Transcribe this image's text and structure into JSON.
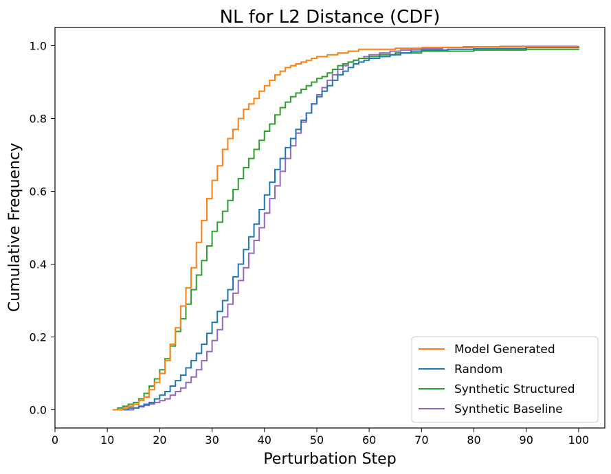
{
  "chart_data": {
    "type": "line",
    "step": true,
    "title": "NL for L2 Distance (CDF)",
    "xlabel": "Perturbation Step",
    "ylabel": "Cumulative Frequency",
    "xlim": [
      0,
      105
    ],
    "ylim": [
      -0.05,
      1.05
    ],
    "xticks": [
      0,
      10,
      20,
      30,
      40,
      50,
      60,
      70,
      80,
      90,
      100
    ],
    "yticks": [
      0.0,
      0.2,
      0.4,
      0.6,
      0.8,
      1.0
    ],
    "xtick_labels": [
      "0",
      "10",
      "20",
      "30",
      "40",
      "50",
      "60",
      "70",
      "80",
      "90",
      "100"
    ],
    "ytick_labels": [
      "0.0",
      "0.2",
      "0.4",
      "0.6",
      "0.8",
      "1.0"
    ],
    "legend_position": "bottom-right",
    "series": [
      {
        "name": "Model Generated",
        "color": "#ff7f0e",
        "x": [
          11,
          13,
          14,
          15,
          16,
          17,
          18,
          19,
          20,
          21,
          22,
          23,
          24,
          25,
          26,
          27,
          28,
          29,
          30,
          31,
          32,
          33,
          34,
          35,
          36,
          37,
          38,
          39,
          40,
          41,
          42,
          43,
          44,
          45,
          46,
          47,
          48,
          49,
          50,
          52,
          54,
          56,
          58,
          60,
          65,
          70,
          80,
          100
        ],
        "y": [
          0.0,
          0.005,
          0.01,
          0.015,
          0.025,
          0.035,
          0.055,
          0.075,
          0.1,
          0.135,
          0.18,
          0.225,
          0.285,
          0.335,
          0.39,
          0.46,
          0.52,
          0.58,
          0.63,
          0.67,
          0.715,
          0.745,
          0.77,
          0.8,
          0.825,
          0.84,
          0.855,
          0.875,
          0.89,
          0.905,
          0.92,
          0.93,
          0.94,
          0.945,
          0.95,
          0.955,
          0.96,
          0.965,
          0.97,
          0.975,
          0.98,
          0.985,
          0.99,
          0.99,
          0.993,
          0.995,
          0.997,
          0.998
        ]
      },
      {
        "name": "Random",
        "color": "#1f77b4",
        "x": [
          12,
          14,
          16,
          17,
          18,
          19,
          20,
          21,
          22,
          23,
          24,
          25,
          26,
          27,
          28,
          29,
          30,
          31,
          32,
          33,
          34,
          35,
          36,
          37,
          38,
          39,
          40,
          41,
          42,
          43,
          44,
          45,
          46,
          47,
          48,
          49,
          50,
          51,
          52,
          53,
          54,
          55,
          56,
          57,
          58,
          59,
          60,
          62,
          64,
          66,
          68,
          70,
          75,
          80,
          90,
          100
        ],
        "y": [
          0.0,
          0.005,
          0.01,
          0.015,
          0.02,
          0.03,
          0.04,
          0.05,
          0.065,
          0.08,
          0.095,
          0.115,
          0.135,
          0.155,
          0.18,
          0.21,
          0.24,
          0.27,
          0.3,
          0.33,
          0.365,
          0.4,
          0.44,
          0.475,
          0.51,
          0.55,
          0.59,
          0.625,
          0.66,
          0.69,
          0.72,
          0.745,
          0.77,
          0.795,
          0.815,
          0.84,
          0.86,
          0.875,
          0.89,
          0.905,
          0.92,
          0.93,
          0.94,
          0.95,
          0.955,
          0.96,
          0.965,
          0.97,
          0.975,
          0.98,
          0.985,
          0.988,
          0.99,
          0.992,
          0.995,
          0.997
        ]
      },
      {
        "name": "Synthetic Structured",
        "color": "#2ca02c",
        "x": [
          11,
          12,
          13,
          14,
          15,
          16,
          17,
          18,
          19,
          20,
          21,
          22,
          23,
          24,
          25,
          26,
          27,
          28,
          29,
          30,
          31,
          32,
          33,
          34,
          35,
          36,
          37,
          38,
          39,
          40,
          41,
          42,
          43,
          44,
          45,
          46,
          47,
          48,
          49,
          50,
          51,
          52,
          53,
          54,
          55,
          56,
          57,
          58,
          60,
          62,
          65,
          70,
          80,
          90,
          100
        ],
        "y": [
          0.0,
          0.005,
          0.01,
          0.015,
          0.02,
          0.03,
          0.045,
          0.065,
          0.085,
          0.11,
          0.14,
          0.175,
          0.215,
          0.25,
          0.29,
          0.33,
          0.37,
          0.41,
          0.45,
          0.49,
          0.515,
          0.545,
          0.575,
          0.605,
          0.635,
          0.665,
          0.69,
          0.715,
          0.74,
          0.765,
          0.785,
          0.81,
          0.83,
          0.845,
          0.86,
          0.87,
          0.88,
          0.89,
          0.9,
          0.91,
          0.915,
          0.925,
          0.935,
          0.945,
          0.95,
          0.955,
          0.96,
          0.965,
          0.97,
          0.975,
          0.98,
          0.985,
          0.988,
          0.99,
          0.992
        ]
      },
      {
        "name": "Synthetic Baseline",
        "color": "#9467bd",
        "x": [
          12,
          15,
          16,
          17,
          18,
          19,
          20,
          21,
          22,
          23,
          24,
          25,
          26,
          27,
          28,
          29,
          30,
          31,
          32,
          33,
          34,
          35,
          36,
          37,
          38,
          39,
          40,
          41,
          42,
          43,
          44,
          45,
          46,
          47,
          48,
          49,
          50,
          51,
          52,
          53,
          54,
          55,
          56,
          57,
          58,
          59,
          60,
          62,
          64,
          66,
          68,
          70,
          74,
          78,
          85,
          100
        ],
        "y": [
          0.0,
          0.005,
          0.008,
          0.012,
          0.016,
          0.02,
          0.025,
          0.03,
          0.04,
          0.05,
          0.06,
          0.075,
          0.09,
          0.11,
          0.135,
          0.16,
          0.19,
          0.22,
          0.255,
          0.29,
          0.32,
          0.355,
          0.39,
          0.43,
          0.465,
          0.5,
          0.54,
          0.58,
          0.615,
          0.655,
          0.69,
          0.725,
          0.76,
          0.79,
          0.815,
          0.84,
          0.865,
          0.885,
          0.905,
          0.92,
          0.935,
          0.945,
          0.955,
          0.96,
          0.965,
          0.97,
          0.975,
          0.98,
          0.985,
          0.988,
          0.99,
          0.992,
          0.995,
          0.997,
          0.998,
          0.999
        ]
      }
    ]
  }
}
